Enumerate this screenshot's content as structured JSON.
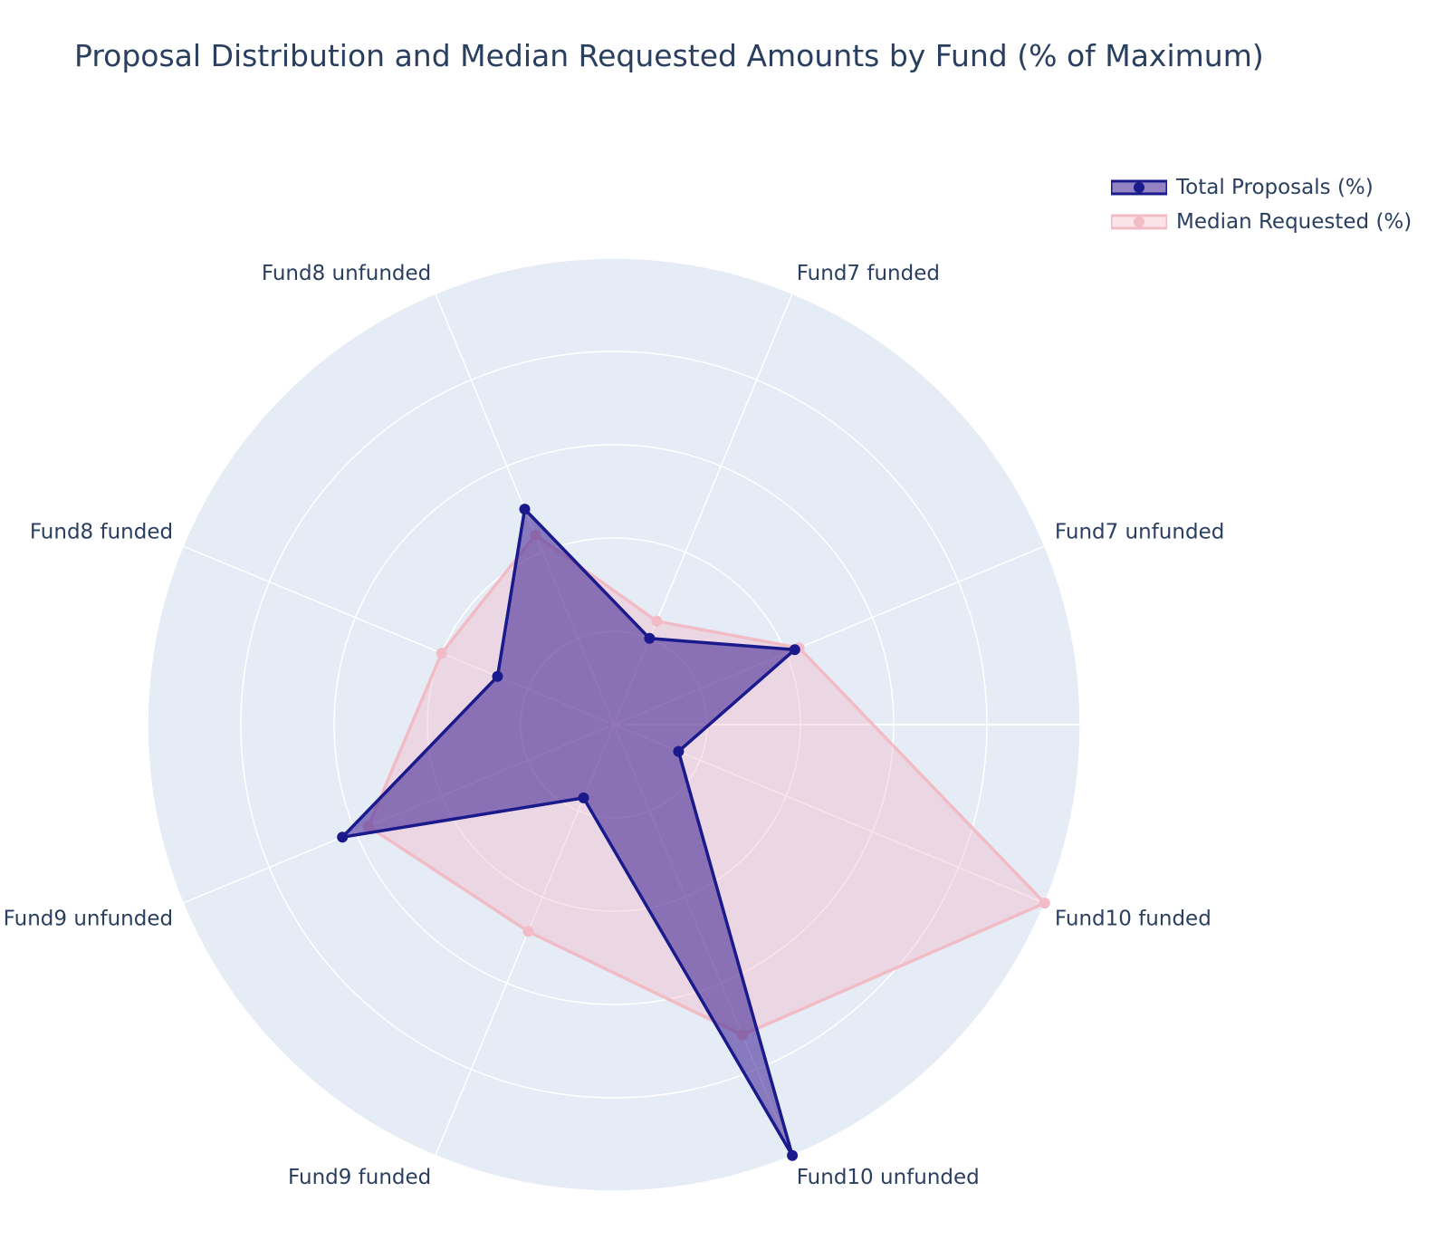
{
  "chart_data": {
    "type": "radar",
    "title": "Proposal Distribution and Median Requested Amounts by Fund (% of Maximum)",
    "categories": [
      "Fund10 funded",
      "Fund10 unfunded",
      "Fund9 funded",
      "Fund9 unfunded",
      "Fund8 funded",
      "Fund8 unfunded",
      "Fund7 funded",
      "Fund7 unfunded"
    ],
    "radial_range": [
      0,
      100
    ],
    "radial_ticks": [
      20,
      40,
      60,
      80,
      100
    ],
    "series": [
      {
        "name": "Total Proposals (%)",
        "values": [
          15,
          100,
          17,
          63,
          27,
          50,
          20,
          42
        ],
        "color": "#1a1a8c",
        "fill": "rgba(58,30,145,0.55)"
      },
      {
        "name": "Median Requested (%)",
        "values": [
          100,
          72,
          48,
          57,
          40,
          44,
          24,
          43
        ],
        "color": "#f1bcc6",
        "fill": "rgba(245,185,200,0.40)"
      }
    ],
    "legend_position": "top-right"
  }
}
